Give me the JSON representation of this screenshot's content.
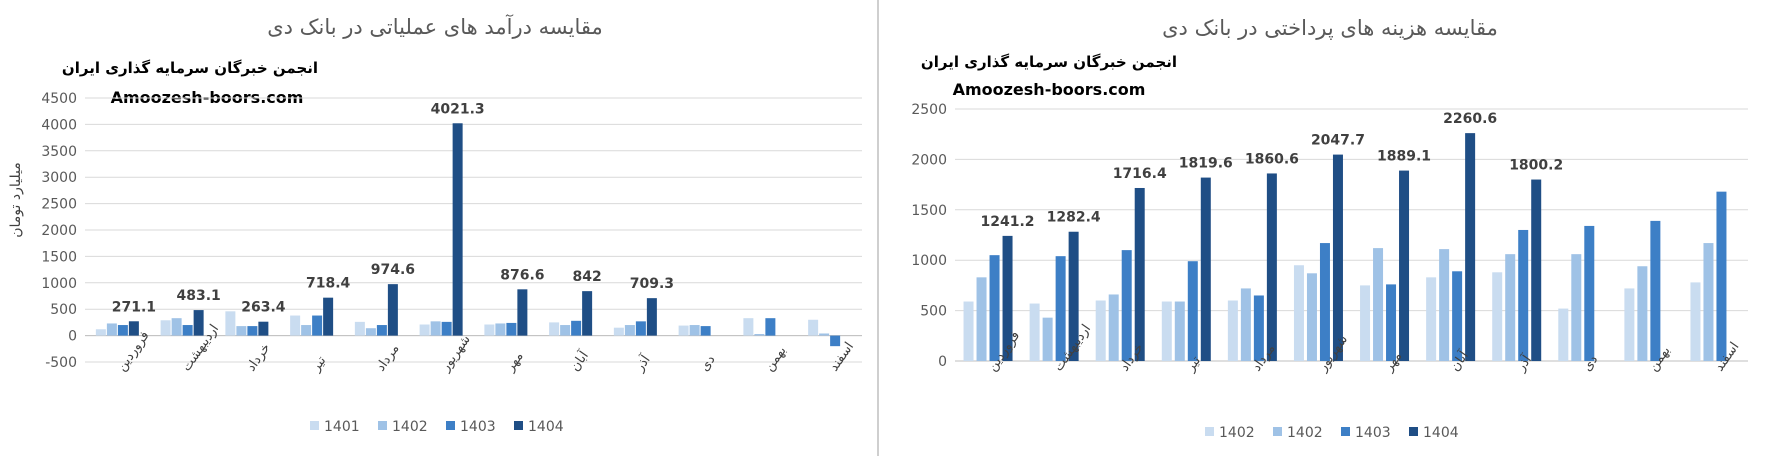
{
  "colors": {
    "s1401": "#c9dcf0",
    "s1402": "#9fc2e6",
    "s1403": "#3d7fc6",
    "s1404": "#1f4e85",
    "divider": "#bfbfbf",
    "grid": "#d9d9d9",
    "title": "#595959"
  },
  "chart_data": [
    {
      "type": "bar",
      "title": "مقایسه درآمد های عملیاتی در بانک دی",
      "subtitle": "انجمن خبرگان سرمایه گذاری ایران",
      "watermark": "Amoozesh-boors.com",
      "ylabel": "میلیارد تومان",
      "xlabel": "",
      "ylim": [
        -500,
        4500
      ],
      "yticks": [
        -500,
        0,
        500,
        1000,
        1500,
        2000,
        2500,
        3000,
        3500,
        4000,
        4500
      ],
      "grid": true,
      "legend": "bottom",
      "categories": [
        "فروردین",
        "اردیبهشت",
        "خرداد",
        "تیر",
        "مرداد",
        "شهریور",
        "مهر",
        "آبان",
        "آذر",
        "دی",
        "بهمن",
        "اسفند"
      ],
      "series": [
        {
          "name": "1401",
          "values": [
            120,
            290,
            460,
            380,
            260,
            210,
            210,
            250,
            150,
            190,
            330,
            300
          ]
        },
        {
          "name": "1402",
          "values": [
            230,
            330,
            180,
            200,
            140,
            270,
            230,
            200,
            200,
            200,
            30,
            40
          ]
        },
        {
          "name": "1403",
          "values": [
            200,
            200,
            180,
            380,
            200,
            260,
            240,
            280,
            270,
            180,
            330,
            -200
          ]
        },
        {
          "name": "1404",
          "values": [
            271.1,
            483.1,
            263.4,
            718.4,
            974.6,
            4021.3,
            876.6,
            842,
            709.3,
            null,
            null,
            null
          ]
        }
      ],
      "data_labels": [
        "271.1",
        "483.1",
        "263.4",
        "718.4",
        "974.6",
        "4021.3",
        "876.6",
        "842",
        "709.3",
        "",
        "",
        ""
      ]
    },
    {
      "type": "bar",
      "title": "مقایسه هزینه های پرداختی در بانک دی",
      "subtitle": "انجمن خبرگان سرمایه گذاری ایران",
      "watermark": "Amoozesh-boors.com",
      "ylabel": "",
      "xlabel": "",
      "ylim": [
        0,
        2500
      ],
      "yticks": [
        0,
        500,
        1000,
        1500,
        2000,
        2500
      ],
      "grid": true,
      "legend": "bottom",
      "categories": [
        "فروردین",
        "اردیبهشت",
        "خرداد",
        "تیر",
        "مرداد",
        "شهریور",
        "مهر",
        "آبان",
        "آذر",
        "دی",
        "بهمن",
        "اسفند"
      ],
      "series": [
        {
          "name": "1402",
          "values": [
            590,
            570,
            600,
            590,
            600,
            950,
            750,
            830,
            880,
            520,
            720,
            780
          ]
        },
        {
          "name": "1402",
          "values": [
            830,
            430,
            660,
            590,
            720,
            870,
            1120,
            1110,
            1060,
            1060,
            940,
            1170
          ]
        },
        {
          "name": "1403",
          "values": [
            1050,
            1040,
            1100,
            990,
            650,
            1170,
            760,
            890,
            1300,
            1340,
            1390,
            1680
          ]
        },
        {
          "name": "1404",
          "values": [
            1241.2,
            1282.4,
            1716.4,
            1819.6,
            1860.6,
            2047.7,
            1889.1,
            2260.6,
            1800.2,
            null,
            null,
            null
          ]
        }
      ],
      "data_labels": [
        "1241.2",
        "1282.4",
        "1716.4",
        "1819.6",
        "1860.6",
        "2047.7",
        "1889.1",
        "2260.6",
        "1800.2",
        "",
        "",
        ""
      ]
    }
  ]
}
